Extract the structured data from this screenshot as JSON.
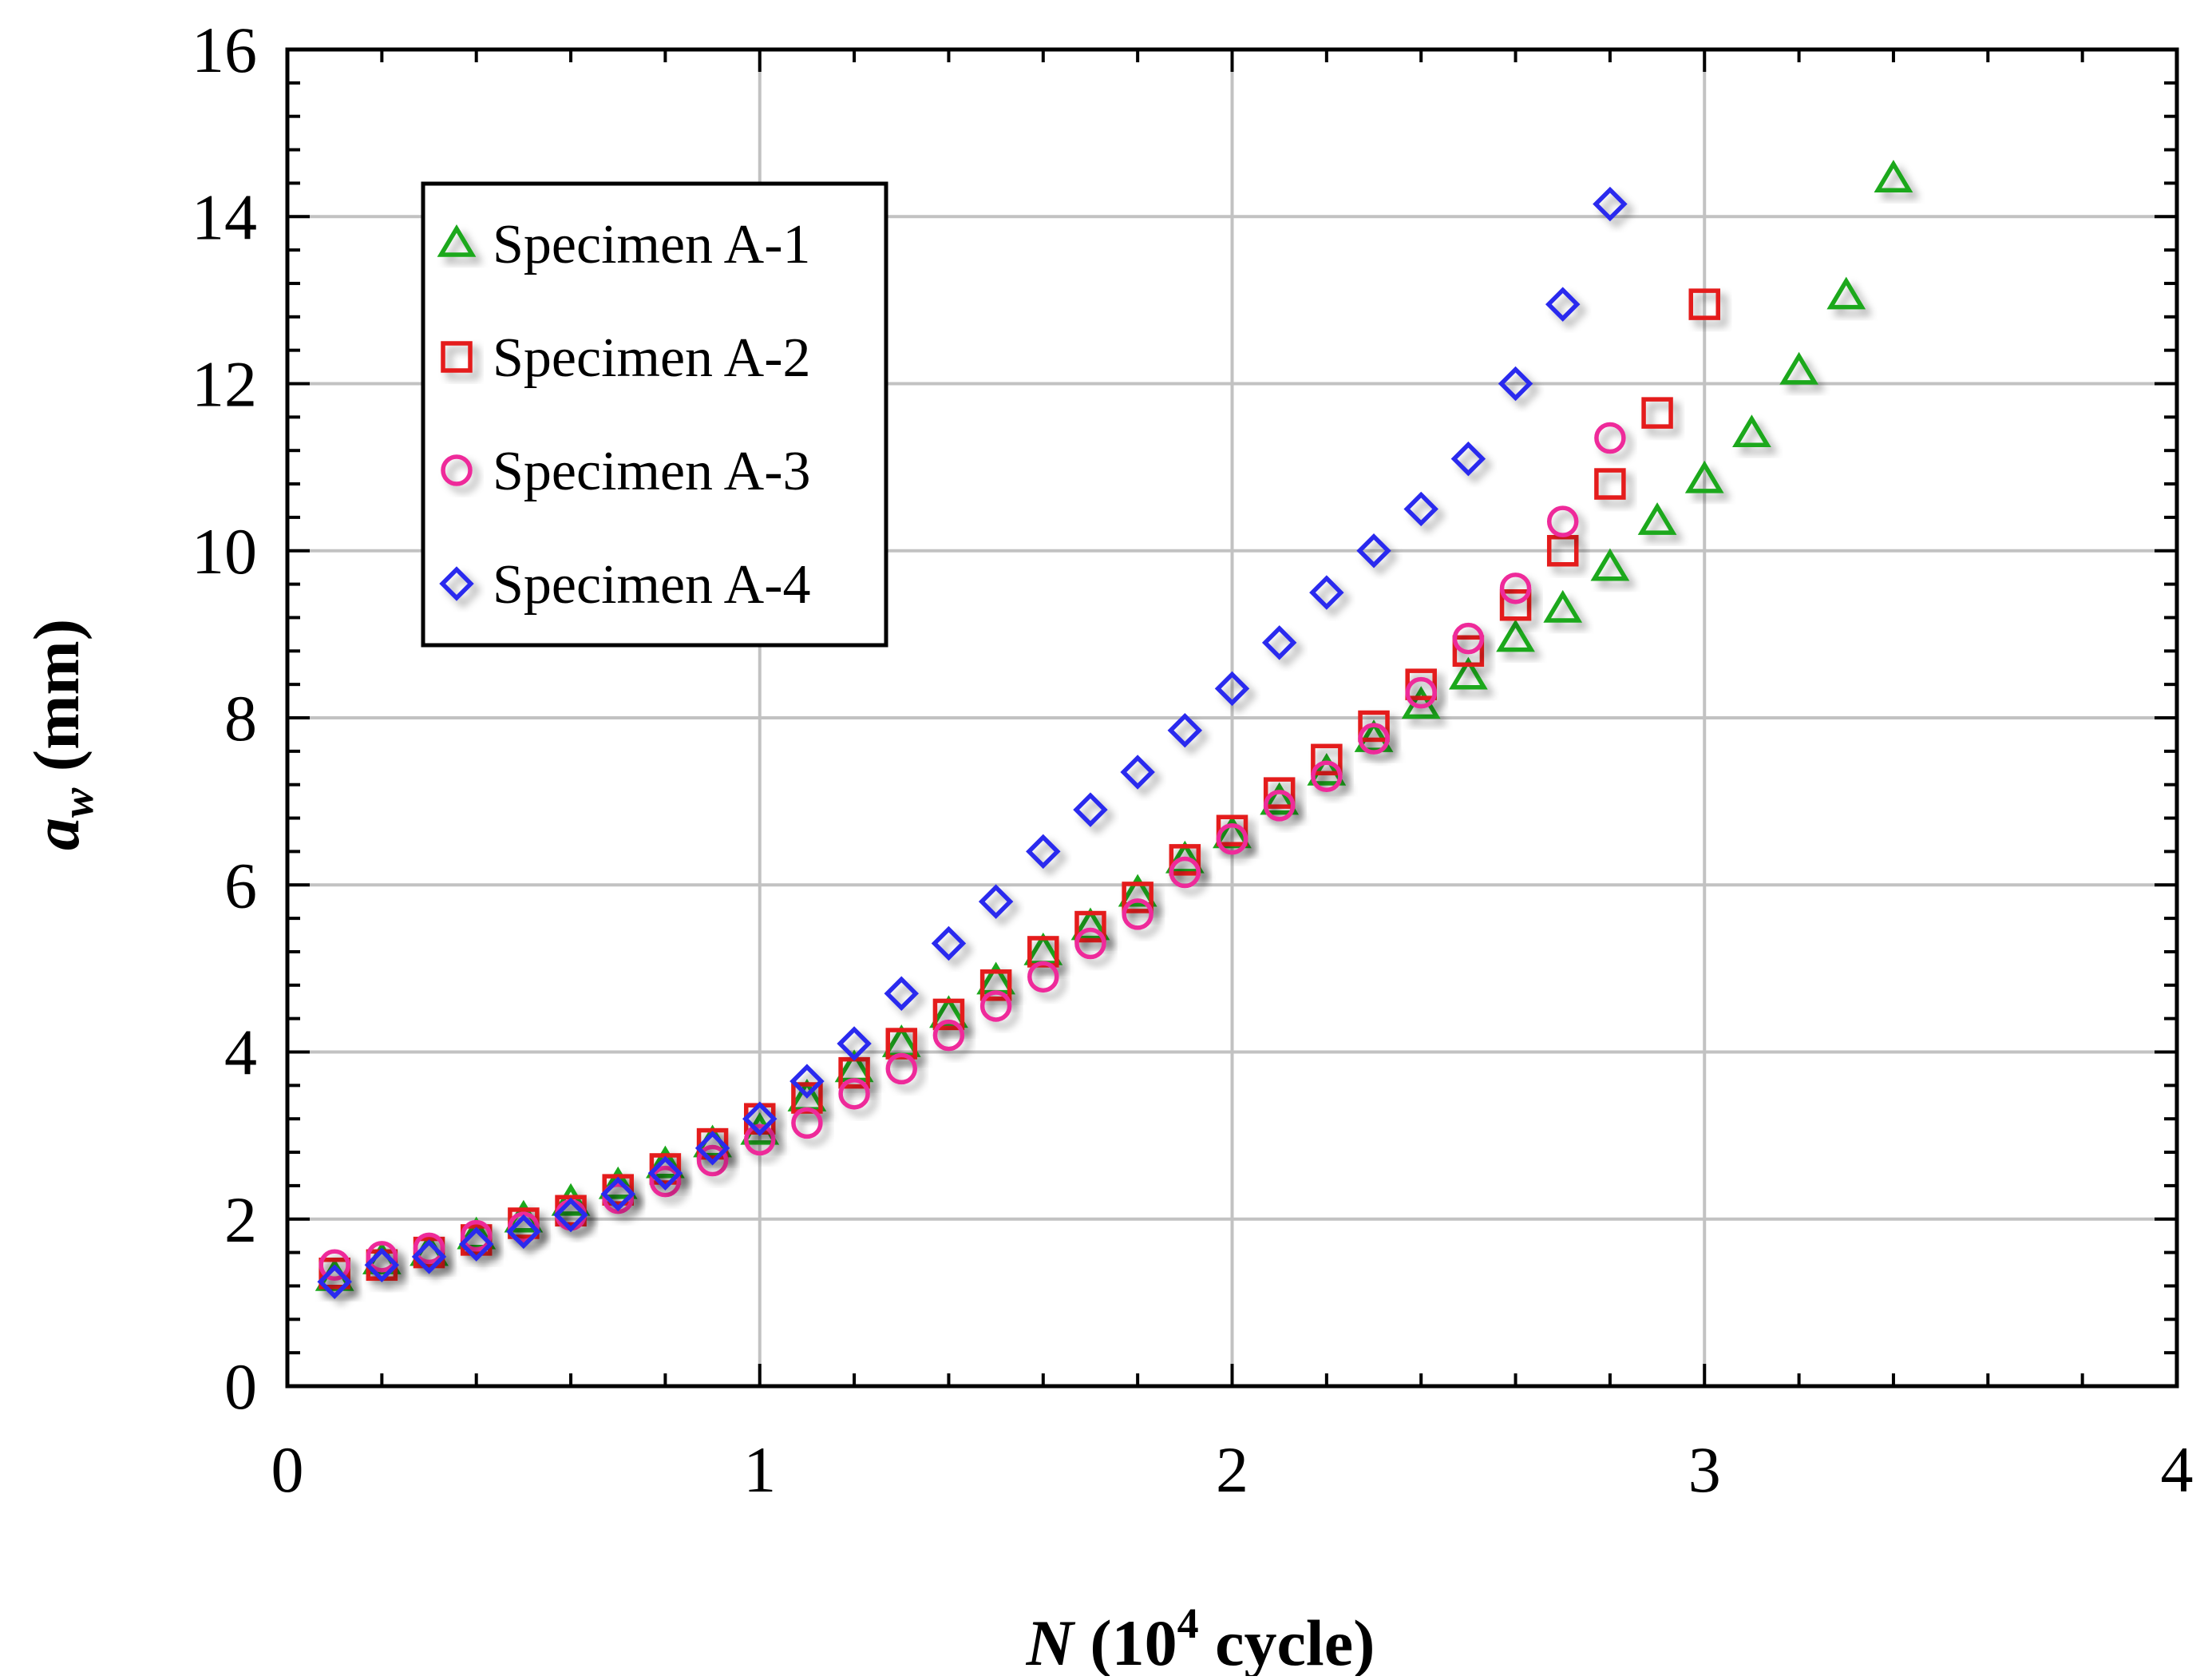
{
  "chart_data": {
    "type": "scatter",
    "title": "",
    "xlabel": {
      "main": "N",
      "rest": " (10",
      "sup": "4",
      "tail": " cycle)"
    },
    "ylabel": {
      "main": "a",
      "sub": "w",
      "rest": " (mm)"
    },
    "xlim": [
      0,
      4
    ],
    "ylim": [
      0,
      16
    ],
    "xticks": [
      0,
      1,
      2,
      3,
      4
    ],
    "yticks": [
      0,
      2,
      4,
      6,
      8,
      10,
      12,
      14,
      16
    ],
    "xtick_labels": [
      "0",
      "1",
      "2",
      "3",
      "4"
    ],
    "ytick_labels": [
      "0",
      "2",
      "4",
      "6",
      "8",
      "10",
      "12",
      "14",
      "16"
    ],
    "x_minor_step": 0.2,
    "y_minor_step": 0.4,
    "grid": true,
    "legend_position": "top-left",
    "series": [
      {
        "name": "Specimen A-1",
        "marker": "triangle",
        "color": "#1aa81a",
        "x": [
          0.1,
          0.2,
          0.3,
          0.4,
          0.5,
          0.6,
          0.7,
          0.8,
          0.9,
          1.0,
          1.1,
          1.2,
          1.3,
          1.4,
          1.5,
          1.6,
          1.7,
          1.8,
          1.9,
          2.0,
          2.1,
          2.2,
          2.3,
          2.4,
          2.5,
          2.6,
          2.7,
          2.8,
          2.9,
          3.0,
          3.1,
          3.2,
          3.3,
          3.4
        ],
        "y": [
          1.3,
          1.5,
          1.6,
          1.8,
          2.0,
          2.2,
          2.4,
          2.65,
          2.9,
          3.05,
          3.45,
          3.8,
          4.1,
          4.45,
          4.85,
          5.2,
          5.5,
          5.9,
          6.3,
          6.6,
          7.0,
          7.35,
          7.75,
          8.15,
          8.5,
          8.95,
          9.3,
          9.8,
          10.35,
          10.85,
          11.4,
          12.15,
          13.05,
          14.45
        ]
      },
      {
        "name": "Specimen A-2",
        "marker": "square",
        "color": "#e41a1a",
        "x": [
          0.1,
          0.2,
          0.3,
          0.4,
          0.5,
          0.6,
          0.7,
          0.8,
          0.9,
          1.0,
          1.1,
          1.2,
          1.3,
          1.4,
          1.5,
          1.6,
          1.7,
          1.8,
          1.9,
          2.0,
          2.1,
          2.2,
          2.3,
          2.4,
          2.5,
          2.6,
          2.7,
          2.8,
          2.9,
          3.0
        ],
        "y": [
          1.35,
          1.45,
          1.6,
          1.75,
          1.95,
          2.1,
          2.35,
          2.6,
          2.9,
          3.2,
          3.45,
          3.75,
          4.1,
          4.45,
          4.8,
          5.2,
          5.5,
          5.85,
          6.3,
          6.65,
          7.1,
          7.5,
          7.9,
          8.4,
          8.8,
          9.35,
          10.0,
          10.8,
          11.65,
          12.95
        ]
      },
      {
        "name": "Specimen A-3",
        "marker": "circle",
        "color": "#ee2a9a",
        "x": [
          0.1,
          0.2,
          0.3,
          0.4,
          0.5,
          0.6,
          0.7,
          0.8,
          0.9,
          1.0,
          1.1,
          1.2,
          1.3,
          1.4,
          1.5,
          1.6,
          1.7,
          1.8,
          1.9,
          2.0,
          2.1,
          2.2,
          2.3,
          2.4,
          2.5,
          2.6,
          2.7,
          2.8
        ],
        "y": [
          1.45,
          1.55,
          1.65,
          1.8,
          1.9,
          2.05,
          2.25,
          2.45,
          2.7,
          2.95,
          3.15,
          3.5,
          3.8,
          4.2,
          4.55,
          4.9,
          5.3,
          5.65,
          6.15,
          6.55,
          6.95,
          7.3,
          7.75,
          8.3,
          8.95,
          9.55,
          10.35,
          11.35
        ]
      },
      {
        "name": "Specimen A-4",
        "marker": "diamond",
        "color": "#2a2aee",
        "x": [
          0.1,
          0.2,
          0.3,
          0.4,
          0.5,
          0.6,
          0.7,
          0.8,
          0.9,
          1.0,
          1.1,
          1.2,
          1.3,
          1.4,
          1.5,
          1.6,
          1.7,
          1.8,
          1.9,
          2.0,
          2.1,
          2.2,
          2.3,
          2.4,
          2.5,
          2.6,
          2.7,
          2.8
        ],
        "y": [
          1.25,
          1.45,
          1.55,
          1.7,
          1.85,
          2.05,
          2.3,
          2.55,
          2.85,
          3.2,
          3.65,
          4.1,
          4.7,
          5.3,
          5.8,
          6.4,
          6.9,
          7.35,
          7.85,
          8.35,
          8.9,
          9.5,
          10.0,
          10.5,
          11.1,
          12.0,
          12.95,
          14.15
        ]
      }
    ]
  }
}
